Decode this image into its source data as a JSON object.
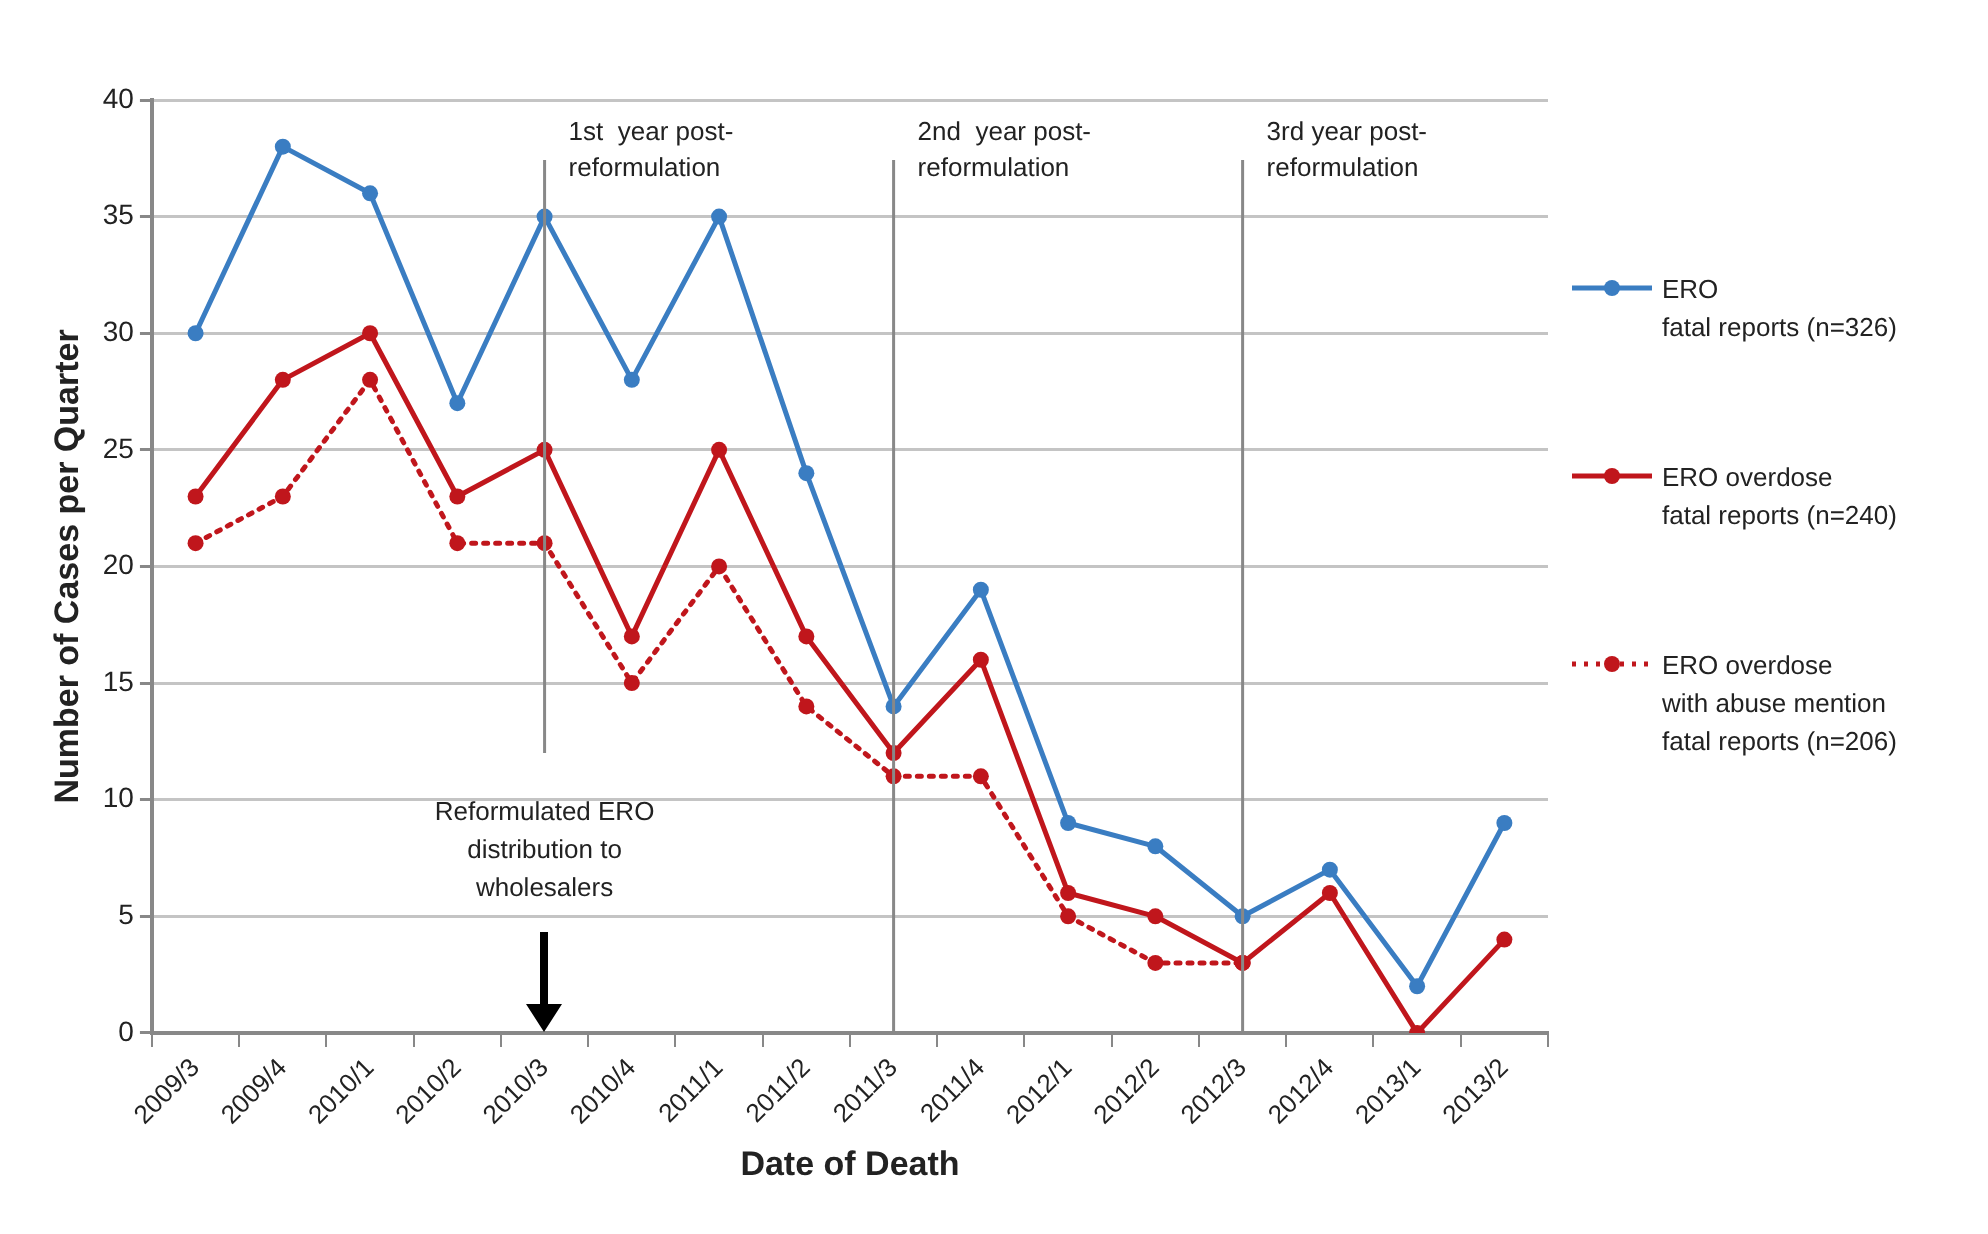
{
  "chart_data": {
    "type": "line",
    "xlabel": "Date of Death",
    "ylabel": "Number of Cases per Quarter",
    "categories": [
      "2009/3",
      "2009/4",
      "2010/1",
      "2010/2",
      "2010/3",
      "2010/4",
      "2011/1",
      "2011/2",
      "2011/3",
      "2011/4",
      "2012/1",
      "2012/2",
      "2012/3",
      "2012/4",
      "2013/1",
      "2013/2"
    ],
    "series": [
      {
        "name": "ERO\nfatal reports (n=326)",
        "color": "#3a7dc2",
        "values": [
          30,
          38,
          36,
          27,
          35,
          28,
          35,
          24,
          14,
          19,
          9,
          8,
          5,
          7,
          2,
          9
        ]
      },
      {
        "name": "ERO overdose\nfatal reports (n=240)",
        "color": "#c0161c",
        "values": [
          23,
          28,
          30,
          23,
          25,
          17,
          25,
          17,
          12,
          16,
          6,
          5,
          3,
          6,
          0,
          4
        ]
      },
      {
        "name": "ERO overdose\nwith abuse mention\nfatal reports (n=206)",
        "color": "#c0161c",
        "line_style": "dotted",
        "values": [
          21,
          23,
          28,
          21,
          21,
          15,
          20,
          14,
          11,
          11,
          5,
          3,
          3,
          null,
          null,
          null
        ]
      }
    ],
    "ylim": [
      0,
      40
    ],
    "yticks": [
      0,
      5,
      10,
      15,
      20,
      25,
      30,
      35,
      40
    ],
    "grid": "y",
    "legend": "right",
    "marker": "circle",
    "ref_lines": [
      {
        "axis": "x",
        "value": "2010/3",
        "label": "1st  year post-\nreformulation",
        "color": "#888888"
      },
      {
        "axis": "x",
        "value": "2011/3",
        "label": "2nd  year post-\nreformulation",
        "color": "#888888"
      },
      {
        "axis": "x",
        "value": "2012/3",
        "label": "3rd year post-\nreformulation",
        "color": "#888888"
      }
    ],
    "annotations": [
      "Reformulated ERO\ndistribution to\nwholesalers"
    ]
  }
}
